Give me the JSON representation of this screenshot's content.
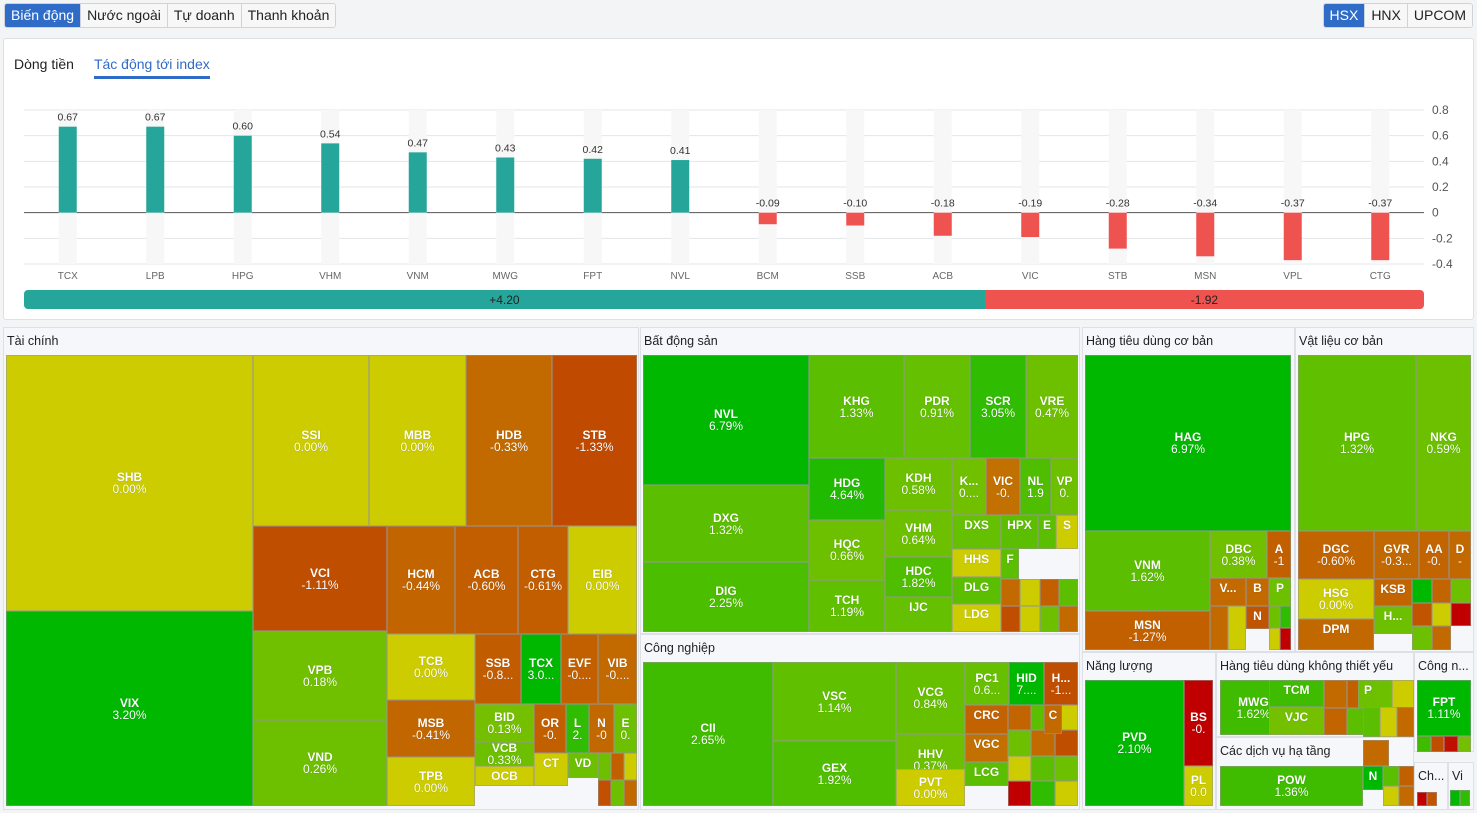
{
  "top_tabs": [
    {
      "label": "Biến động",
      "active": true
    },
    {
      "label": "Nước ngoài",
      "active": false
    },
    {
      "label": "Tự doanh",
      "active": false
    },
    {
      "label": "Thanh khoản",
      "active": false
    }
  ],
  "exchange_tabs": [
    {
      "label": "HSX",
      "active": true
    },
    {
      "label": "HNX",
      "active": false
    },
    {
      "label": "UPCOM",
      "active": false
    }
  ],
  "sub_tabs": [
    {
      "label": "Dòng tiền",
      "active": false
    },
    {
      "label": "Tác động tới index",
      "active": true
    }
  ],
  "colors": {
    "positive": "#26a69a",
    "negative": "#ef5350",
    "accent": "#2f6cc7"
  },
  "chart_data": {
    "type": "bar",
    "title": "Tác động tới index",
    "categories": [
      "TCX",
      "LPB",
      "HPG",
      "VHM",
      "VNM",
      "MWG",
      "FPT",
      "NVL",
      "BCM",
      "SSB",
      "ACB",
      "VIC",
      "STB",
      "MSN",
      "VPL",
      "CTG"
    ],
    "values": [
      0.67,
      0.67,
      0.6,
      0.54,
      0.47,
      0.43,
      0.42,
      0.41,
      -0.09,
      -0.1,
      -0.18,
      -0.19,
      -0.28,
      -0.34,
      -0.37,
      -0.37
    ],
    "value_labels": [
      "0.67",
      "0.67",
      "0.60",
      "0.54",
      "0.47",
      "0.43",
      "0.42",
      "0.41",
      "-0.09",
      "-0.10",
      "-0.18",
      "-0.19",
      "-0.28",
      "-0.34",
      "-0.37",
      "-0.37"
    ],
    "yticks": [
      0.8,
      0.6,
      0.4,
      0.2,
      0,
      -0.2,
      -0.4
    ],
    "ytick_labels": [
      "0.8",
      "0.6",
      "0.4",
      "0.2",
      "0",
      "-0.2",
      "-0.4"
    ],
    "ylim": [
      -0.4,
      0.8
    ],
    "grid": true,
    "y_axis_side": "right",
    "totals": {
      "positive": 4.2,
      "negative": -1.92,
      "positive_label": "+4.20",
      "negative_label": "-1.92"
    }
  },
  "treemap": {
    "sectors": [
      {
        "name": "Tài chính"
      },
      {
        "name": "Bất động sản"
      },
      {
        "name": "Công nghiệp"
      },
      {
        "name": "Hàng tiêu dùng cơ bản"
      },
      {
        "name": "Vật liệu cơ bản"
      },
      {
        "name": "Năng lượng"
      },
      {
        "name": "Hàng tiêu dùng không thiết yếu"
      },
      {
        "name": "Các dịch vụ hạ tầng"
      },
      {
        "name": "Công n..."
      },
      {
        "name": "Ch..."
      },
      {
        "name": "Vi"
      }
    ],
    "tiles": [
      {
        "sector": "Tài chính",
        "ticker": "SHB",
        "change": "0.00%",
        "color": "#cccc00"
      },
      {
        "sector": "Tài chính",
        "ticker": "VIX",
        "change": "3.20%",
        "color": "#00b800"
      },
      {
        "sector": "Tài chính",
        "ticker": "SSI",
        "change": "0.00%",
        "color": "#cccc00"
      },
      {
        "sector": "Tài chính",
        "ticker": "MBB",
        "change": "0.00%",
        "color": "#cccc00"
      },
      {
        "sector": "Tài chính",
        "ticker": "HDB",
        "change": "-0.33%",
        "color": "#c26a00"
      },
      {
        "sector": "Tài chính",
        "ticker": "STB",
        "change": "-1.33%",
        "color": "#c04a00"
      },
      {
        "sector": "Tài chính",
        "ticker": "VCI",
        "change": "-1.11%",
        "color": "#c04e00"
      },
      {
        "sector": "Tài chính",
        "ticker": "HCM",
        "change": "-0.44%",
        "color": "#c26400"
      },
      {
        "sector": "Tài chính",
        "ticker": "ACB",
        "change": "-0.60%",
        "color": "#c25e00"
      },
      {
        "sector": "Tài chính",
        "ticker": "CTG",
        "change": "-0.61%",
        "color": "#c25e00"
      },
      {
        "sector": "Tài chính",
        "ticker": "EIB",
        "change": "0.00%",
        "color": "#cccc00"
      },
      {
        "sector": "Tài chính",
        "ticker": "VPB",
        "change": "0.18%",
        "color": "#70c000"
      },
      {
        "sector": "Tài chính",
        "ticker": "VND",
        "change": "0.26%",
        "color": "#6cc000"
      },
      {
        "sector": "Tài chính",
        "ticker": "TCB",
        "change": "0.00%",
        "color": "#cccc00"
      },
      {
        "sector": "Tài chính",
        "ticker": "MSB",
        "change": "-0.41%",
        "color": "#c26600"
      },
      {
        "sector": "Tài chính",
        "ticker": "TPB",
        "change": "0.00%",
        "color": "#cccc00"
      },
      {
        "sector": "Tài chính",
        "ticker": "SSB",
        "change": "-0.8...",
        "color": "#c25c00"
      },
      {
        "sector": "Tài chính",
        "ticker": "TCX",
        "change": "3.0...",
        "color": "#00b800"
      },
      {
        "sector": "Tài chính",
        "ticker": "EVF",
        "change": "-0....",
        "color": "#c26000"
      },
      {
        "sector": "Tài chính",
        "ticker": "VIB",
        "change": "-0....",
        "color": "#c26a00"
      },
      {
        "sector": "Tài chính",
        "ticker": "BID",
        "change": "0.13%",
        "color": "#74c000"
      },
      {
        "sector": "Tài chính",
        "ticker": "VCB",
        "change": "0.33%",
        "color": "#6cc000"
      },
      {
        "sector": "Tài chính",
        "ticker": "OCB",
        "change": "",
        "color": "#cccc00"
      },
      {
        "sector": "Tài chính",
        "ticker": "OR",
        "change": "-0.",
        "color": "#c26000"
      },
      {
        "sector": "Tài chính",
        "ticker": "L",
        "change": "2.",
        "color": "#30bc00"
      },
      {
        "sector": "Tài chính",
        "ticker": "N",
        "change": "-0",
        "color": "#c26800"
      },
      {
        "sector": "Tài chính",
        "ticker": "E",
        "change": "0.",
        "color": "#6cc000"
      },
      {
        "sector": "Tài chính",
        "ticker": "CT",
        "change": "",
        "color": "#cccc00"
      },
      {
        "sector": "Tài chính",
        "ticker": "VD",
        "change": "",
        "color": "#6cc000"
      },
      {
        "sector": "Bất động sản",
        "ticker": "NVL",
        "change": "6.79%",
        "color": "#00b800"
      },
      {
        "sector": "Bất động sản",
        "ticker": "DXG",
        "change": "1.32%",
        "color": "#5cbe00"
      },
      {
        "sector": "Bất động sản",
        "ticker": "DIG",
        "change": "2.25%",
        "color": "#4cbe00"
      },
      {
        "sector": "Bất động sản",
        "ticker": "KHG",
        "change": "1.33%",
        "color": "#5cbe00"
      },
      {
        "sector": "Bất động sản",
        "ticker": "PDR",
        "change": "0.91%",
        "color": "#64c000"
      },
      {
        "sector": "Bất động sản",
        "ticker": "SCR",
        "change": "3.05%",
        "color": "#30bc00"
      },
      {
        "sector": "Bất động sản",
        "ticker": "VRE",
        "change": "0.47%",
        "color": "#6cc000"
      },
      {
        "sector": "Bất động sản",
        "ticker": "HDG",
        "change": "4.64%",
        "color": "#20ba00"
      },
      {
        "sector": "Bất động sản",
        "ticker": "HQC",
        "change": "0.66%",
        "color": "#6cc000"
      },
      {
        "sector": "Bất động sản",
        "ticker": "TCH",
        "change": "1.19%",
        "color": "#60c000"
      },
      {
        "sector": "Bất động sản",
        "ticker": "KDH",
        "change": "0.58%",
        "color": "#6cc000"
      },
      {
        "sector": "Bất động sản",
        "ticker": "VHM",
        "change": "0.64%",
        "color": "#6cc000"
      },
      {
        "sector": "Bất động sản",
        "ticker": "HDC",
        "change": "1.82%",
        "color": "#50be00"
      },
      {
        "sector": "Bất động sản",
        "ticker": "IJC",
        "change": "",
        "color": "#64c000"
      },
      {
        "sector": "Bất động sản",
        "ticker": "K...",
        "change": "0....",
        "color": "#70c000"
      },
      {
        "sector": "Bất động sản",
        "ticker": "VIC",
        "change": "-0.",
        "color": "#c27000"
      },
      {
        "sector": "Bất động sản",
        "ticker": "NL",
        "change": "1.9",
        "color": "#50be00"
      },
      {
        "sector": "Bất động sản",
        "ticker": "VP",
        "change": "0.",
        "color": "#6cc000"
      },
      {
        "sector": "Bất động sản",
        "ticker": "DXS",
        "change": "",
        "color": "#64c000"
      },
      {
        "sector": "Bất động sản",
        "ticker": "HPX",
        "change": "",
        "color": "#5cbe00"
      },
      {
        "sector": "Bất động sản",
        "ticker": "E",
        "change": "",
        "color": "#5cbe00"
      },
      {
        "sector": "Bất động sản",
        "ticker": "S",
        "change": "",
        "color": "#cccc00"
      },
      {
        "sector": "Bất động sản",
        "ticker": "HHS",
        "change": "",
        "color": "#cccc00"
      },
      {
        "sector": "Bất động sản",
        "ticker": "F",
        "change": "",
        "color": "#5cbe00"
      },
      {
        "sector": "Bất động sản",
        "ticker": "DLG",
        "change": "",
        "color": "#5cbe00"
      },
      {
        "sector": "Bất động sản",
        "ticker": "LDG",
        "change": "",
        "color": "#cccc00"
      },
      {
        "sector": "Công nghiệp",
        "ticker": "CII",
        "change": "2.65%",
        "color": "#40bc00"
      },
      {
        "sector": "Công nghiệp",
        "ticker": "VSC",
        "change": "1.14%",
        "color": "#60c000"
      },
      {
        "sector": "Công nghiệp",
        "ticker": "GEX",
        "change": "1.92%",
        "color": "#50be00"
      },
      {
        "sector": "Công nghiệp",
        "ticker": "VCG",
        "change": "0.84%",
        "color": "#66c000"
      },
      {
        "sector": "Công nghiệp",
        "ticker": "HHV",
        "change": "0.37%",
        "color": "#6cc000"
      },
      {
        "sector": "Công nghiệp",
        "ticker": "PVT",
        "change": "0.00%",
        "color": "#cccc00"
      },
      {
        "sector": "Công nghiệp",
        "ticker": "PC1",
        "change": "0.6...",
        "color": "#66c000"
      },
      {
        "sector": "Công nghiệp",
        "ticker": "HID",
        "change": "7....",
        "color": "#00b800"
      },
      {
        "sector": "Công nghiệp",
        "ticker": "H...",
        "change": "-1...",
        "color": "#c04e00"
      },
      {
        "sector": "Công nghiệp",
        "ticker": "CRC",
        "change": "",
        "color": "#c26200"
      },
      {
        "sector": "Công nghiệp",
        "ticker": "C",
        "change": "",
        "color": "#c26a00"
      },
      {
        "sector": "Công nghiệp",
        "ticker": "VGC",
        "change": "",
        "color": "#c27000"
      },
      {
        "sector": "Công nghiệp",
        "ticker": "LCG",
        "change": "",
        "color": "#5cbe00"
      },
      {
        "sector": "Hàng tiêu dùng cơ bản",
        "ticker": "HAG",
        "change": "6.97%",
        "color": "#00b800"
      },
      {
        "sector": "Hàng tiêu dùng cơ bản",
        "ticker": "VNM",
        "change": "1.62%",
        "color": "#5cbe00"
      },
      {
        "sector": "Hàng tiêu dùng cơ bản",
        "ticker": "MSN",
        "change": "-1.27%",
        "color": "#c26000"
      },
      {
        "sector": "Hàng tiêu dùng cơ bản",
        "ticker": "DBC",
        "change": "0.38%",
        "color": "#70c000"
      },
      {
        "sector": "Hàng tiêu dùng cơ bản",
        "ticker": "A",
        "change": "-1",
        "color": "#c26000"
      },
      {
        "sector": "Hàng tiêu dùng cơ bản",
        "ticker": "V...",
        "change": "",
        "color": "#c26a00"
      },
      {
        "sector": "Hàng tiêu dùng cơ bản",
        "ticker": "B",
        "change": "",
        "color": "#c26a00"
      },
      {
        "sector": "Hàng tiêu dùng cơ bản",
        "ticker": "P",
        "change": "",
        "color": "#6cc000"
      },
      {
        "sector": "Hàng tiêu dùng cơ bản",
        "ticker": "N",
        "change": "",
        "color": "#c05400"
      },
      {
        "sector": "Vật liệu cơ bản",
        "ticker": "HPG",
        "change": "1.32%",
        "color": "#60c000"
      },
      {
        "sector": "Vật liệu cơ bản",
        "ticker": "NKG",
        "change": "0.59%",
        "color": "#6cc000"
      },
      {
        "sector": "Vật liệu cơ bản",
        "ticker": "DGC",
        "change": "-0.60%",
        "color": "#c26400"
      },
      {
        "sector": "Vật liệu cơ bản",
        "ticker": "GVR",
        "change": "-0.3...",
        "color": "#c26800"
      },
      {
        "sector": "Vật liệu cơ bản",
        "ticker": "AA",
        "change": "-0.",
        "color": "#c26400"
      },
      {
        "sector": "Vật liệu cơ bản",
        "ticker": "D",
        "change": "-",
        "color": "#c26800"
      },
      {
        "sector": "Vật liệu cơ bản",
        "ticker": "HSG",
        "change": "0.00%",
        "color": "#cccc00"
      },
      {
        "sector": "Vật liệu cơ bản",
        "ticker": "KSB",
        "change": "",
        "color": "#c26400"
      },
      {
        "sector": "Vật liệu cơ bản",
        "ticker": "DPM",
        "change": "",
        "color": "#c26800"
      },
      {
        "sector": "Vật liệu cơ bản",
        "ticker": "H...",
        "change": "",
        "color": "#6cc000"
      },
      {
        "sector": "Năng lượng",
        "ticker": "PVD",
        "change": "2.10%",
        "color": "#00b800"
      },
      {
        "sector": "Năng lượng",
        "ticker": "BS",
        "change": "-0.",
        "color": "#c00000"
      },
      {
        "sector": "Năng lượng",
        "ticker": "PL",
        "change": "0.0",
        "color": "#cccc00"
      },
      {
        "sector": "Hàng tiêu dùng không thiết yếu",
        "ticker": "MWG",
        "change": "1.62%",
        "color": "#40bc00"
      },
      {
        "sector": "Hàng tiêu dùng không thiết yếu",
        "ticker": "TCM",
        "change": "",
        "color": "#40bc00"
      },
      {
        "sector": "Hàng tiêu dùng không thiết yếu",
        "ticker": "VJC",
        "change": "",
        "color": "#74c000"
      },
      {
        "sector": "Hàng tiêu dùng không thiết yếu",
        "ticker": "P",
        "change": "",
        "color": "#6cc000"
      },
      {
        "sector": "Các dịch vụ hạ tầng",
        "ticker": "POW",
        "change": "1.36%",
        "color": "#40bc00"
      },
      {
        "sector": "Các dịch vụ hạ tầng",
        "ticker": "N",
        "change": "",
        "color": "#00b800"
      },
      {
        "sector": "Công n...",
        "ticker": "FPT",
        "change": "1.11%",
        "color": "#00b800"
      }
    ]
  }
}
